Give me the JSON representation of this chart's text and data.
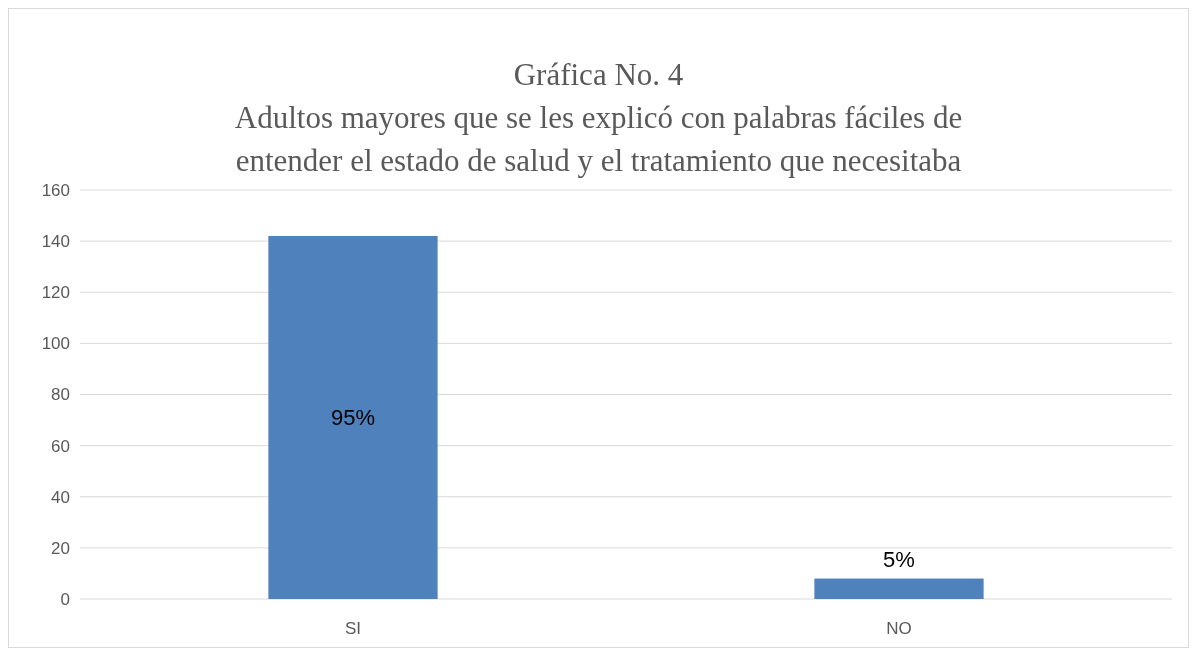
{
  "chart_data": {
    "type": "bar",
    "title": "Gráfica No. 4",
    "subtitle": "Adultos mayores que se les explicó con palabras fáciles de entender el estado de salud y el tratamiento que necesitaba",
    "categories": [
      "SI",
      "NO"
    ],
    "values": [
      142,
      8
    ],
    "annotations": [
      "95%",
      "5%"
    ],
    "color": "#4f81bd",
    "ylim": [
      0,
      160
    ],
    "yticks": [
      0,
      20,
      40,
      60,
      80,
      100,
      120,
      140,
      160
    ],
    "grid": "y"
  }
}
